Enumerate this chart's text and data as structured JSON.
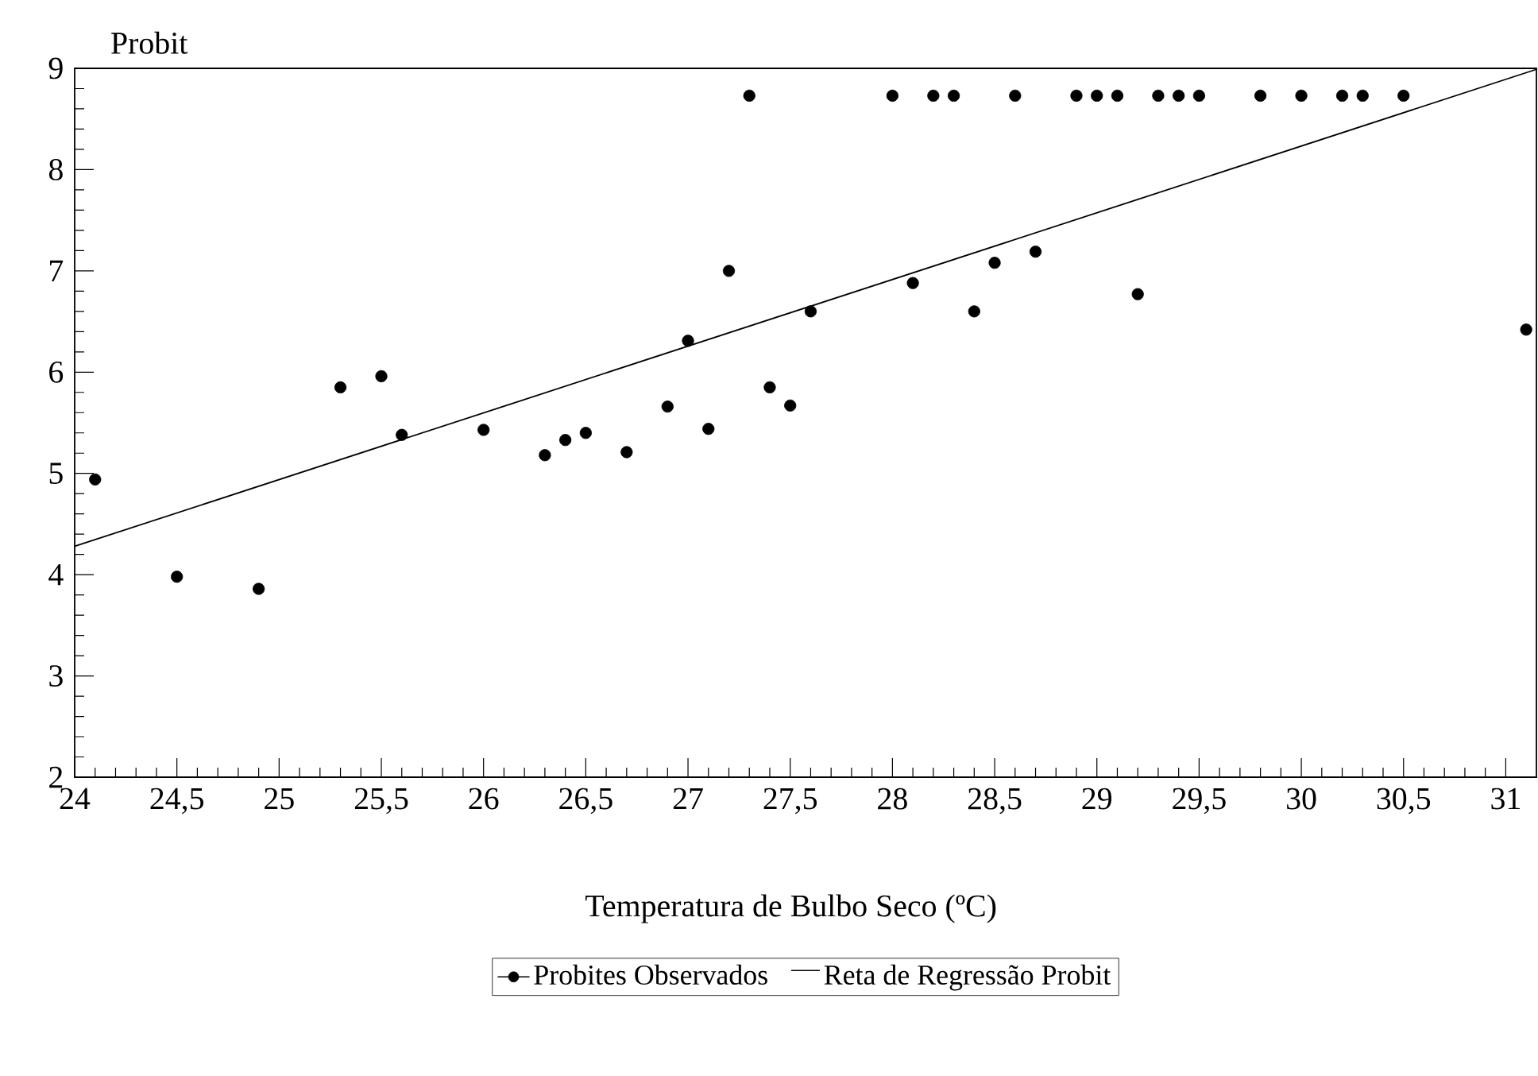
{
  "chart_data": {
    "type": "scatter",
    "xlabel": "Temperatura de Bulbo Seco (ºC)",
    "ylabel": "Probit",
    "xlim": [
      24,
      31.15
    ],
    "ylim": [
      2,
      9
    ],
    "xticks": [
      24,
      {
        "value": 24.5,
        "label": "24,5"
      },
      25,
      {
        "value": 25.5,
        "label": "25,5"
      },
      26,
      {
        "value": 26.5,
        "label": "26,5"
      },
      27,
      {
        "value": 27.5,
        "label": "27,5"
      },
      28,
      {
        "value": 28.5,
        "label": "28,5"
      },
      29,
      {
        "value": 29.5,
        "label": "29,5"
      },
      30,
      {
        "value": 30.5,
        "label": "30,5"
      },
      31
    ],
    "yticks": [
      2,
      3,
      4,
      5,
      6,
      7,
      8,
      9
    ],
    "legend": "bottom",
    "grid": false,
    "series": [
      {
        "name": "Probites Observados",
        "color": "#000000",
        "marker": "circle",
        "x": [
          24.1,
          24.5,
          24.9,
          25.3,
          25.5,
          25.6,
          26.0,
          26.3,
          26.4,
          26.5,
          26.7,
          26.9,
          27.0,
          27.1,
          27.2,
          27.3,
          27.4,
          27.5,
          27.6,
          28.1,
          28.4,
          28.5,
          28.7,
          29.2,
          31.1,
          28.0,
          28.2,
          28.3,
          28.6,
          28.9,
          29.0,
          29.1,
          29.3,
          29.4,
          29.5,
          29.8,
          30.0,
          30.2,
          30.3,
          30.5
        ],
        "values": [
          4.94,
          3.98,
          3.86,
          5.85,
          5.96,
          5.38,
          5.43,
          5.18,
          5.33,
          5.4,
          5.21,
          5.66,
          6.31,
          5.44,
          7.0,
          8.73,
          5.85,
          5.67,
          6.6,
          6.88,
          6.6,
          7.08,
          7.19,
          6.77,
          6.42,
          8.73,
          8.73,
          8.73,
          8.73,
          8.73,
          8.73,
          8.73,
          8.73,
          8.73,
          8.73,
          8.73,
          8.73,
          8.73,
          8.73,
          8.73
        ]
      },
      {
        "name": "Reta de Regressão Probit",
        "type": "line",
        "color": "#000000",
        "marker": "none",
        "x": [
          24,
          31.15
        ],
        "values": [
          4.28,
          8.99
        ]
      }
    ]
  }
}
